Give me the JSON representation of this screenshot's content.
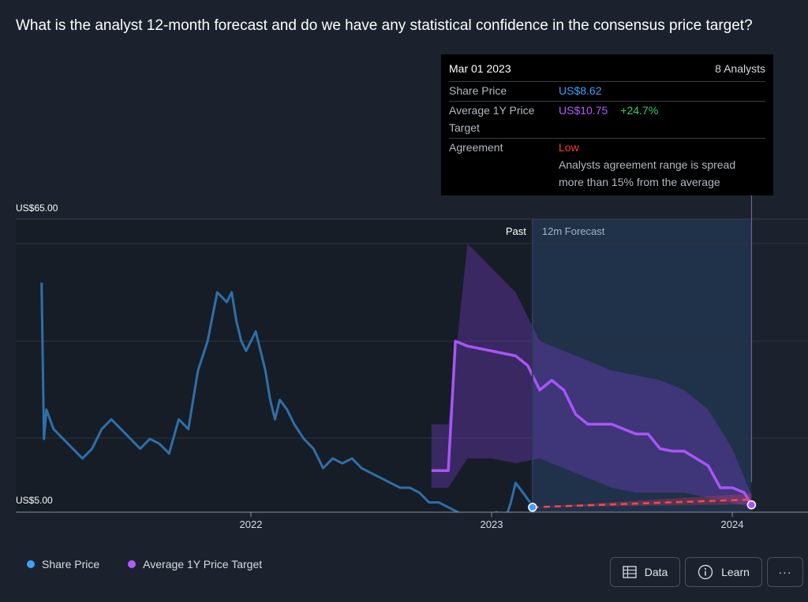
{
  "question": "What is the analyst 12-month forecast and do we have any statistical confidence in the consensus price target?",
  "tooltip": {
    "date": "Mar 01 2023",
    "analysts": "8 Analysts",
    "share_price_label": "Share Price",
    "share_price_value": "US$8.62",
    "target_label": "Average 1Y Price Target",
    "target_value": "US$10.75",
    "target_change": "+24.7%",
    "agreement_label": "Agreement",
    "agreement_value": "Low",
    "agreement_desc": "Analysts agreement range is spread more than 15% from the average"
  },
  "legend": {
    "share_price": "Share Price",
    "price_target": "Average 1Y Price Target"
  },
  "buttons": {
    "data": "Data",
    "learn": "Learn",
    "more": "···"
  },
  "colors": {
    "share_price": "#2f6fa8",
    "share_dot": "#3ea0ff",
    "price_target": "#a855f7",
    "forecast_line": "#ff4747",
    "background": "#1b222d"
  },
  "chart_data": {
    "type": "line",
    "title": "What is the analyst 12-month forecast and do we have any statistical confidence in the consensus price target?",
    "xlabel": "",
    "ylabel": "",
    "ylim": [
      5,
      65
    ],
    "xlim": [
      2021.0,
      2024.3
    ],
    "ytick_labels": [
      "US$65.00",
      "US$5.00"
    ],
    "xtick_labels": [
      "2022",
      "2023",
      "2024"
    ],
    "xticks": [
      2022.0,
      2023.0,
      2024.0
    ],
    "region_labels": {
      "past": "Past",
      "forecast": "12m Forecast"
    },
    "past_end_x": 2023.17,
    "series": [
      {
        "name": "Share Price",
        "x": [
          2021.13,
          2021.14,
          2021.15,
          2021.18,
          2021.22,
          2021.26,
          2021.3,
          2021.34,
          2021.38,
          2021.42,
          2021.46,
          2021.5,
          2021.54,
          2021.58,
          2021.62,
          2021.66,
          2021.7,
          2021.74,
          2021.78,
          2021.82,
          2021.86,
          2021.9,
          2021.92,
          2021.94,
          2021.96,
          2021.98,
          2022.02,
          2022.04,
          2022.06,
          2022.08,
          2022.1,
          2022.12,
          2022.15,
          2022.18,
          2022.22,
          2022.26,
          2022.3,
          2022.34,
          2022.38,
          2022.42,
          2022.46,
          2022.5,
          2022.54,
          2022.58,
          2022.62,
          2022.66,
          2022.7,
          2022.74,
          2022.78,
          2022.82,
          2022.86,
          2022.9,
          2022.94,
          2022.98,
          2023.02,
          2023.06,
          2023.08,
          2023.1,
          2023.13,
          2023.16
        ],
        "y": [
          52,
          20,
          26,
          22,
          20,
          18,
          16,
          18,
          22,
          24,
          22,
          20,
          18,
          20,
          19,
          17,
          24,
          22,
          34,
          40,
          50,
          48,
          50,
          44,
          40,
          38,
          42,
          38,
          34,
          28,
          24,
          28,
          26,
          23,
          20,
          18,
          14,
          16,
          15,
          16,
          14,
          13,
          12,
          11,
          10,
          10,
          9,
          7,
          7,
          6,
          5,
          4,
          3,
          4,
          5,
          4,
          7,
          11,
          9,
          7
        ]
      },
      {
        "name": "Average 1Y Price Target",
        "x": [
          2022.75,
          2022.82,
          2022.85,
          2022.9,
          2022.95,
          2023.0,
          2023.05,
          2023.1,
          2023.15,
          2023.2,
          2023.25,
          2023.3,
          2023.35,
          2023.4,
          2023.45,
          2023.5,
          2023.55,
          2023.6,
          2023.65,
          2023.7,
          2023.75,
          2023.8,
          2023.85,
          2023.9,
          2023.95,
          2024.0,
          2024.05,
          2024.08
        ],
        "y": [
          13.5,
          13.5,
          40,
          39,
          38.5,
          38,
          37.5,
          37,
          35,
          30,
          32,
          30,
          25,
          23,
          23,
          23,
          22,
          21,
          21,
          18,
          17.5,
          17.5,
          16,
          14.5,
          10,
          10,
          9,
          6.5
        ]
      },
      {
        "name": "Forecast Share Price",
        "x": [
          2023.17,
          2024.08
        ],
        "y": [
          6.0,
          7.6
        ]
      }
    ],
    "target_band": {
      "x": [
        2022.75,
        2022.82,
        2022.9,
        2023.0,
        2023.1,
        2023.2,
        2023.3,
        2023.4,
        2023.5,
        2023.6,
        2023.7,
        2023.8,
        2023.9,
        2024.0,
        2024.08
      ],
      "upper": [
        23,
        23,
        60,
        55,
        50,
        40,
        38,
        36,
        34,
        33,
        32,
        30,
        26,
        18,
        8.5
      ],
      "lower": [
        10,
        10,
        16,
        16,
        15,
        16,
        14,
        12,
        10,
        9,
        9,
        9,
        8,
        7,
        6
      ]
    }
  }
}
